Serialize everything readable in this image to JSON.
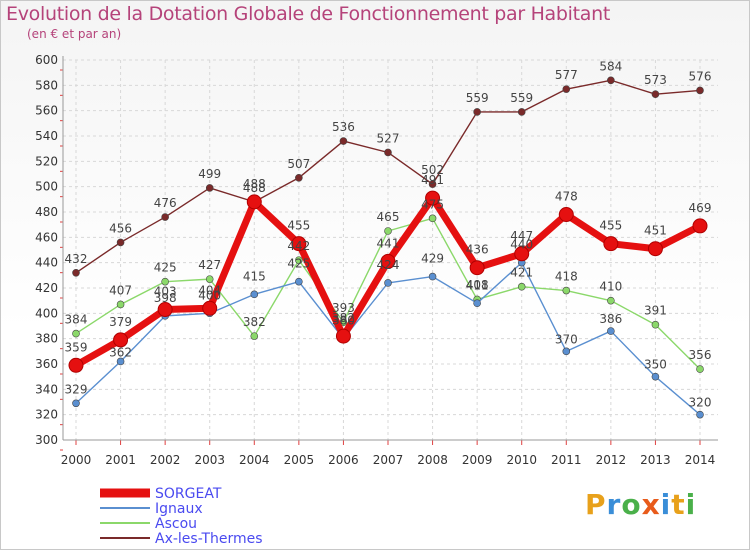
{
  "title": "Evolution de la Dotation Globale de Fonctionnement par Habitant",
  "subtitle": "(en € et par an)",
  "brand": "Proxiti",
  "chart_data": {
    "type": "line",
    "x": [
      2000,
      2001,
      2002,
      2003,
      2004,
      2005,
      2006,
      2007,
      2008,
      2009,
      2010,
      2011,
      2012,
      2013,
      2014
    ],
    "ylim": [
      300,
      600
    ],
    "yticks": [
      300,
      320,
      340,
      360,
      380,
      400,
      420,
      440,
      460,
      480,
      500,
      520,
      540,
      560,
      580,
      600
    ],
    "grid": true,
    "legend_position": "bottom-left",
    "series": [
      {
        "name": "SORGEAT",
        "color": "#e51010",
        "values": [
          359,
          379,
          403,
          404,
          488,
          455,
          382,
          441,
          491,
          436,
          447,
          478,
          455,
          451,
          469
        ]
      },
      {
        "name": "Ignaux",
        "color": "#5a8fd0",
        "values": [
          329,
          362,
          398,
          400,
          415,
          425,
          380,
          424,
          429,
          408,
          440,
          370,
          386,
          350,
          320
        ]
      },
      {
        "name": "Ascou",
        "color": "#8bd86a",
        "values": [
          384,
          407,
          425,
          427,
          382,
          442,
          393,
          465,
          475,
          411,
          421,
          418,
          410,
          391,
          356
        ]
      },
      {
        "name": "Ax-les-Thermes",
        "color": "#7a2a2a",
        "values": [
          432,
          456,
          476,
          499,
          488,
          507,
          536,
          527,
          502,
          559,
          559,
          577,
          584,
          573,
          576
        ]
      }
    ]
  }
}
